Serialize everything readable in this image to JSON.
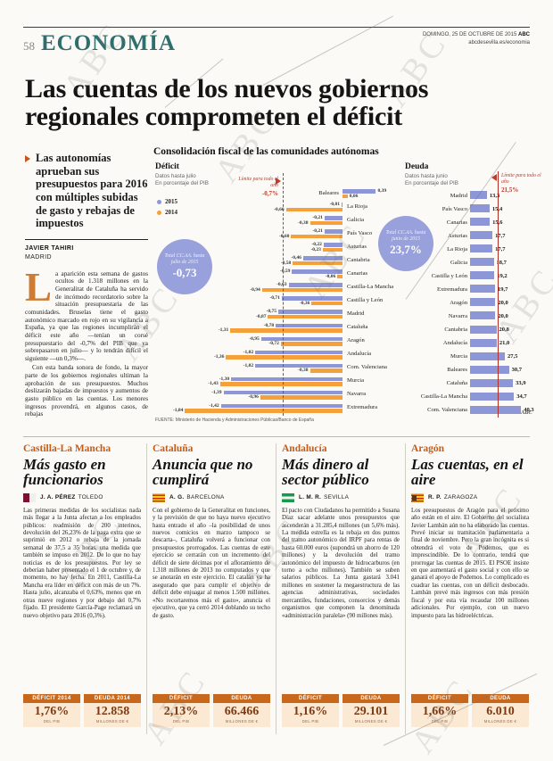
{
  "page": {
    "number": "58",
    "section": "ECONOMÍA",
    "date_line": "DOMINGO, 25 DE OCTUBRE DE 2015",
    "brand": "ABC",
    "site": "abcdesevilla.es/economia",
    "watermark": "ABC"
  },
  "headline": "Las cuentas de los nuevos gobiernos regionales comprometen el déficit",
  "lead": {
    "summary": "Las autonomías aprueban sus presupuestos para 2016 con múltiples subidas de gasto y rebajas de impuestos",
    "author": "JAVIER TAHIRI",
    "city": "MADRID",
    "dropcap": "L",
    "para1": "a aparición esta semana de gastos ocultos de 1.318 millones en la Generalitat de Cataluña ha servido de incómodo recordatorio sobre la situación presupuestaria de las comunidades. Bruselas tiene el gasto autonómico marcado en rojo en su vigilancia a España, ya que las regiones incumplirán el déficit este año —tenían un corsé presupuestario del -0,7% del PIB que ya sobrepasaron en julio— y lo tendrán difícil el siguiente —un 0,3%—.",
    "para2": "Con esta banda sonora de fondo, la mayor parte de los gobiernos regionales ultiman la aprobación de sus presupuestos. Muchos deslizarán bajadas de impuestos y aumentos de gasto público en las cuentas. Los menores ingresos provendrá, en algunos casos, de rebajas"
  },
  "chart_meta": {
    "title": "Consolidación fiscal de las comunidades autónomas",
    "source": "FUENTE: Ministerio de Hacienda y Administraciones Públicas/Banco de España",
    "credit": "ABC"
  },
  "chart_data": [
    {
      "type": "bar",
      "orientation": "horizontal",
      "title": "Déficit",
      "subtitle": "Datos hasta julio\nEn porcentaje del PIB",
      "legend": [
        {
          "name": "2015",
          "color": "#8d97d8"
        },
        {
          "name": "2014",
          "color": "#f5a03a"
        }
      ],
      "limit_label": "Límite para todo el año",
      "limit_value": "-0,7%",
      "limit": -0.7,
      "total_label": "Total CC.AA. hasta julio de 2015",
      "total_value": "-0,73",
      "categories": [
        "Baleares",
        "La Rioja",
        "Galicia",
        "País Vasco",
        "Asturias",
        "Cantabria",
        "Canarias",
        "Castilla-La Mancha",
        "Castilla y León",
        "Madrid",
        "Cataluña",
        "Aragón",
        "Andalucía",
        "Com. Valenciana",
        "Murcia",
        "Navarra",
        "Extremadura"
      ],
      "series": [
        {
          "name": "2015",
          "values": [
            0.39,
            -0.01,
            -0.21,
            -0.21,
            -0.22,
            -0.46,
            -0.59,
            -0.63,
            -0.71,
            -0.75,
            -0.78,
            -0.95,
            -1.02,
            -1.02,
            -1.3,
            -1.39,
            -1.42
          ]
        },
        {
          "name": "2014",
          "values": [
            0.06,
            -0.66,
            -0.38,
            -0.6,
            -0.23,
            -0.58,
            -0.06,
            -0.94,
            -0.36,
            -0.87,
            -1.31,
            -0.72,
            -1.36,
            -0.38,
            -1.43,
            -0.96,
            -1.84
          ]
        }
      ]
    },
    {
      "type": "bar",
      "orientation": "horizontal",
      "title": "Deuda",
      "subtitle": "Datos hasta junio\nEn porcentaje del PIB",
      "limit_label": "Límite para todo el año",
      "limit_value": "21,5%",
      "limit": 21.5,
      "total_label": "Total CC.AA. hasta junio de 2015",
      "total_value": "23,7%",
      "categories": [
        "Madrid",
        "País Vasco",
        "Canarias",
        "Asturias",
        "La Rioja",
        "Galicia",
        "Castilla y León",
        "Extremadura",
        "Aragón",
        "Navarra",
        "Cantabria",
        "Andalucía",
        "Murcia",
        "Baleares",
        "Cataluña",
        "Castilla-La Mancha",
        "Com. Valenciana"
      ],
      "values": [
        13.3,
        15.4,
        15.6,
        17.7,
        17.7,
        18.7,
        19.2,
        19.7,
        20.0,
        20.0,
        20.8,
        21.0,
        27.5,
        30.7,
        33.9,
        34.7,
        40.3
      ]
    }
  ],
  "articles": [
    {
      "kicker": "Castilla-La Mancha",
      "title": "Más gasto en funcionarios",
      "author": "J. A. PÉREZ",
      "city": "TOLEDO",
      "flag": "clm",
      "body": "Las primeras medidas de los socialistas nada más llegar a la Junta afectan a los empleados públicos: readmisión de 200 interinos, devolución del 26,23% de la paga extra que se suprimió en 2012 o rebaja de la jornada semanal de 37,5 a 35 horas, una medida que también se impuso en 2012. De lo que no hay noticias es de los presupuestos. Por ley se deberían haber presentado el 1 de octubre y, de momento, no hay fecha. En 2011, Castilla-La Mancha era líder en déficit con más de un 7%. Hasta julio, alcanzaba el 0,63%, menos que en otras nueve regiones y por debajo del 0,7% fijado. El presidente García-Page reclamará un nuevo objetivo para 2016 (0,3%).",
      "stats": [
        {
          "label": "DÉFICIT 2014",
          "value": "1,76%",
          "caption": "DEL PIB"
        },
        {
          "label": "DEUDA 2014",
          "value": "12.858",
          "caption": "MILLONES DE €"
        }
      ]
    },
    {
      "kicker": "Cataluña",
      "title": "Anuncia que no cumplirá",
      "author": "A. G.",
      "city": "BARCELONA",
      "flag": "cat",
      "body": "Con el gobierno de la Generalitat en funciones, y la previsión de que no haya nuevo ejecutivo hasta entrado el año –la posibilidad de unos nuevos comicios en marzo tampoco se descarta–, Cataluña volverá a funcionar con presupuestos prorrogados. Las cuentas de este ejercicio se cerrarán con un incremento del déficit de siete décimas por el afloramiento de 1.318 millones de 2013 no computados y que se anotarán en este ejercicio. El catalán ya ha asegurado que para cumplir el objetivo de déficit debe enjuagar al menos 1.500 millones. «No recortaremos más el gasto», anuncia el ejecutivo, que ya cerró 2014 doblando su techo de gasto.",
      "stats": [
        {
          "label": "DÉFICIT",
          "value": "2,13%",
          "caption": "DEL PIB"
        },
        {
          "label": "DEUDA",
          "value": "66.466",
          "caption": "MILLONES DE €"
        }
      ]
    },
    {
      "kicker": "Andalucía",
      "title": "Más dinero al sector público",
      "author": "L. M. R.",
      "city": "SEVILLA",
      "flag": "and",
      "body": "El pacto con Ciudadanos ha permitido a Susana Díaz sacar adelante unos presupuestos que ascenderán a 31.285,4 millones (un 5,6% más). La medida estrella es la rebaja en dos puntos del tramo autonómico del IRPF para rentas de hasta 60.000 euros (supondrá un ahorro de 120 millones) y la devolución del tramo autonómico del impuesto de hidrocarburos (en torno a ocho millones). También se suben salarios públicos. La Junta gastará 3.041 millones en sostener la megaestructura de las agencias administrativas, sociedades mercantiles, fundaciones, consorcios y demás organismos que componen la denominada «administración paralela» (90 millones más).",
      "stats": [
        {
          "label": "DÉFICIT",
          "value": "1,16%",
          "caption": "DEL PIB"
        },
        {
          "label": "DEUDA",
          "value": "29.101",
          "caption": "MILLONES DE €"
        }
      ]
    },
    {
      "kicker": "Aragón",
      "title": "Las cuentas, en el aire",
      "author": "R. P.",
      "city": "ZARAGOZA",
      "flag": "ara",
      "body": "Los presupuestos de Aragón para el próximo año están en el aire. El Gobierno del socialista Javier Lambán aún no ha elaborado las cuentas. Prevé iniciar su tramitación parlamentaria a final de noviembre. Pero la gran incógnita es si obtendrá el voto de Podemos, que es imprescindible. De lo contrario, tendrá que prorrogar las cuentas de 2015. El PSOE insiste en que aumentará el gasto social y con ello se ganará el apoyo de Podemos. Lo complicado es cuadrar las cuentas, con un déficit desbocado. Lambán prevé más ingresos con más presión fiscal y por esta vía recaudar 100 millones adicionales. Por ejemplo, con un nuevo impuesto para las hidroeléctricas.",
      "stats": [
        {
          "label": "DÉFICIT",
          "value": "1,66%",
          "caption": "DEL PIB"
        },
        {
          "label": "DEUDA",
          "value": "6.010",
          "caption": "MILLONES DE €"
        }
      ]
    }
  ],
  "colors": {
    "section_teal": "#2e6f6e",
    "bar_2015": "#8d97d8",
    "bar_2014": "#f5a03a",
    "limit_red": "#c0392b",
    "kicker_orange": "#c95a14",
    "stat_header": "#c8681d",
    "stat_bg": "#fbe9d3",
    "dropcap_orange": "#ce7b33"
  }
}
